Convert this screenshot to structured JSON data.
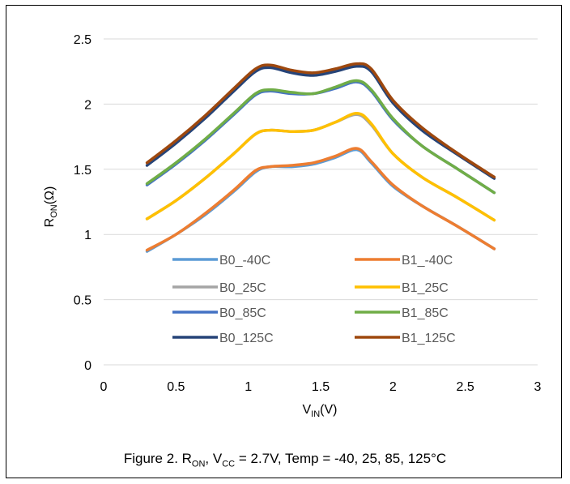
{
  "chart_data": {
    "type": "line",
    "title": "",
    "xlabel": {
      "main": "V",
      "sub": "IN",
      "unit": "(V)"
    },
    "ylabel": {
      "main": "R",
      "sub": "ON",
      "unit": "(Ω)"
    },
    "xlim": [
      0,
      3
    ],
    "ylim": [
      0,
      2.5
    ],
    "xticks": [
      "0",
      "0.5",
      "1",
      "1.5",
      "2",
      "2.5",
      "3"
    ],
    "yticks": [
      "0",
      "0.5",
      "1",
      "1.5",
      "2",
      "2.5"
    ],
    "grid": "horizontal",
    "legend_position": "inside-bottom",
    "x": [
      0.3,
      0.5,
      0.7,
      0.9,
      1.05,
      1.15,
      1.3,
      1.45,
      1.6,
      1.75,
      1.85,
      2.0,
      2.2,
      2.45,
      2.7
    ],
    "series": [
      {
        "name": "B0_-40C",
        "color": "#5B9BD5",
        "values": [
          0.87,
          1.0,
          1.15,
          1.33,
          1.48,
          1.52,
          1.52,
          1.54,
          1.59,
          1.65,
          1.55,
          1.37,
          1.22,
          1.06,
          0.89
        ]
      },
      {
        "name": "B1_-40C",
        "color": "#ED7D31",
        "values": [
          0.88,
          1.0,
          1.16,
          1.34,
          1.49,
          1.52,
          1.53,
          1.55,
          1.6,
          1.66,
          1.56,
          1.38,
          1.22,
          1.06,
          0.89
        ]
      },
      {
        "name": "B0_25C",
        "color": "#A5A5A5",
        "values": [
          1.12,
          1.26,
          1.43,
          1.62,
          1.77,
          1.8,
          1.79,
          1.8,
          1.86,
          1.92,
          1.84,
          1.62,
          1.44,
          1.28,
          1.11
        ]
      },
      {
        "name": "B1_25C",
        "color": "#FFC000",
        "values": [
          1.12,
          1.26,
          1.43,
          1.62,
          1.77,
          1.8,
          1.79,
          1.8,
          1.86,
          1.93,
          1.85,
          1.62,
          1.44,
          1.28,
          1.11
        ]
      },
      {
        "name": "B0_85C",
        "color": "#4472C4",
        "values": [
          1.38,
          1.54,
          1.72,
          1.92,
          2.07,
          2.1,
          2.08,
          2.08,
          2.12,
          2.17,
          2.1,
          1.88,
          1.68,
          1.5,
          1.32
        ]
      },
      {
        "name": "B1_85C",
        "color": "#70AD47",
        "values": [
          1.39,
          1.55,
          1.73,
          1.93,
          2.08,
          2.11,
          2.09,
          2.08,
          2.13,
          2.18,
          2.11,
          1.89,
          1.68,
          1.5,
          1.32
        ]
      },
      {
        "name": "B0_125C",
        "color": "#264478",
        "values": [
          1.53,
          1.7,
          1.89,
          2.1,
          2.25,
          2.28,
          2.24,
          2.22,
          2.25,
          2.29,
          2.25,
          2.01,
          1.8,
          1.61,
          1.43
        ]
      },
      {
        "name": "B1_125C",
        "color": "#9E480E",
        "values": [
          1.55,
          1.72,
          1.91,
          2.12,
          2.27,
          2.3,
          2.26,
          2.24,
          2.27,
          2.31,
          2.27,
          2.03,
          1.82,
          1.62,
          1.44
        ]
      }
    ]
  },
  "caption": {
    "prefix": "Figure 2. R",
    "r_sub": "ON",
    "mid": ", V",
    "v_sub": "CC",
    "suffix": " = 2.7V, Temp = -40, 25, 85, 125°C"
  }
}
